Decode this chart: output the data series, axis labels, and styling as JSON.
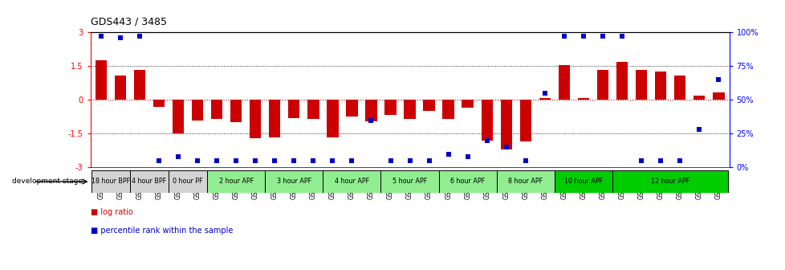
{
  "title": "GDS443 / 3485",
  "samples": [
    "GSM4585",
    "GSM4586",
    "GSM4587",
    "GSM4588",
    "GSM4589",
    "GSM4590",
    "GSM4591",
    "GSM4592",
    "GSM4593",
    "GSM4594",
    "GSM4595",
    "GSM4596",
    "GSM4597",
    "GSM4598",
    "GSM4599",
    "GSM4600",
    "GSM4601",
    "GSM4602",
    "GSM4603",
    "GSM4604",
    "GSM4605",
    "GSM4606",
    "GSM4607",
    "GSM4608",
    "GSM4609",
    "GSM4610",
    "GSM4611",
    "GSM4612",
    "GSM4613",
    "GSM4614",
    "GSM4615",
    "GSM4616",
    "GSM4617"
  ],
  "log_ratios": [
    1.75,
    1.1,
    1.35,
    -0.3,
    -1.5,
    -0.9,
    -0.85,
    -1.0,
    -1.7,
    -1.65,
    -0.8,
    -0.85,
    -1.65,
    -0.75,
    -0.95,
    -0.65,
    -0.85,
    -0.5,
    -0.85,
    -0.35,
    -1.8,
    -2.2,
    -1.85,
    0.1,
    1.55,
    0.1,
    1.35,
    1.7,
    1.35,
    1.25,
    1.1,
    0.2,
    0.35
  ],
  "percentile_ranks": [
    97,
    96,
    97,
    5,
    8,
    5,
    5,
    5,
    5,
    5,
    5,
    5,
    5,
    5,
    35,
    5,
    5,
    5,
    10,
    8,
    20,
    15,
    5,
    55,
    97,
    97,
    97,
    97,
    5,
    5,
    5,
    28,
    65
  ],
  "stages": [
    {
      "label": "18 hour BPF",
      "start": 0,
      "end": 2,
      "color": "#d3d3d3"
    },
    {
      "label": "4 hour BPF",
      "start": 2,
      "end": 4,
      "color": "#d3d3d3"
    },
    {
      "label": "0 hour PF",
      "start": 4,
      "end": 6,
      "color": "#d3d3d3"
    },
    {
      "label": "2 hour APF",
      "start": 6,
      "end": 9,
      "color": "#90ee90"
    },
    {
      "label": "3 hour APF",
      "start": 9,
      "end": 12,
      "color": "#90ee90"
    },
    {
      "label": "4 hour APF",
      "start": 12,
      "end": 15,
      "color": "#90ee90"
    },
    {
      "label": "5 hour APF",
      "start": 15,
      "end": 18,
      "color": "#90ee90"
    },
    {
      "label": "6 hour APF",
      "start": 18,
      "end": 21,
      "color": "#90ee90"
    },
    {
      "label": "8 hour APF",
      "start": 21,
      "end": 24,
      "color": "#90ee90"
    },
    {
      "label": "10 hour APF",
      "start": 24,
      "end": 27,
      "color": "#00cc00"
    },
    {
      "label": "12 hour APF",
      "start": 27,
      "end": 33,
      "color": "#00cc00"
    }
  ],
  "bar_color": "#cc0000",
  "dot_color": "#0000cc",
  "ylim_left": [
    -3,
    3
  ],
  "ylim_right": [
    0,
    100
  ],
  "dotted_lines": [
    1.5,
    -1.5
  ],
  "zero_line_color": "#cc0000",
  "bg_color": "#ffffff"
}
